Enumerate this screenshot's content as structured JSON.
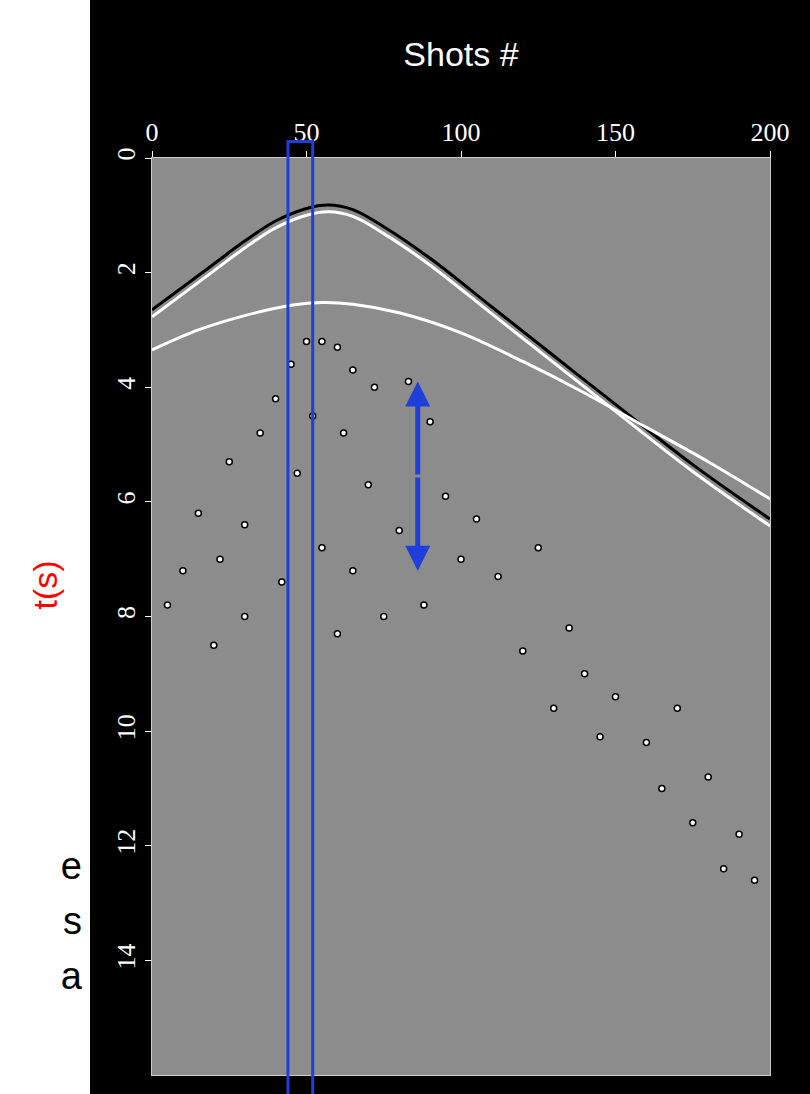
{
  "chart_data": {
    "type": "line",
    "x_label": "Shots #",
    "y_label": "t(s)",
    "xlim": [
      0,
      200
    ],
    "ylim": [
      0,
      16
    ],
    "xticks": [
      0,
      50,
      100,
      150,
      200
    ],
    "yticks": [
      0,
      2,
      4,
      6,
      8,
      10,
      12,
      14
    ],
    "grid": false,
    "series": [
      {
        "type": "line",
        "color": "#000000",
        "x": [
          0,
          10,
          20,
          30,
          40,
          50,
          57,
          65,
          75,
          90,
          110,
          130,
          150,
          175,
          200
        ],
        "values": [
          2.65,
          2.25,
          1.85,
          1.45,
          1.1,
          0.88,
          0.82,
          0.9,
          1.2,
          1.75,
          2.6,
          3.45,
          4.3,
          5.35,
          6.3
        ]
      },
      {
        "type": "line",
        "color": "#ffffff",
        "x": [
          0,
          10,
          20,
          30,
          40,
          50,
          57,
          65,
          75,
          90,
          110,
          130,
          150,
          175,
          200
        ],
        "values": [
          2.77,
          2.37,
          1.97,
          1.57,
          1.22,
          1.0,
          0.94,
          1.02,
          1.32,
          1.87,
          2.72,
          3.57,
          4.42,
          5.47,
          6.42
        ]
      },
      {
        "type": "line",
        "color": "#ffffff",
        "x": [
          0,
          15,
          30,
          45,
          55,
          65,
          80,
          100,
          120,
          140,
          160,
          180,
          200
        ],
        "values": [
          3.35,
          3.0,
          2.75,
          2.57,
          2.52,
          2.55,
          2.7,
          3.05,
          3.55,
          4.1,
          4.7,
          5.3,
          5.95
        ]
      },
      {
        "type": "scatter",
        "color": "#ffffff",
        "marker": "circle",
        "x": [
          50,
          55,
          60,
          45,
          65,
          40,
          72,
          83,
          35,
          52,
          62,
          90,
          25,
          47,
          70,
          95,
          15,
          30,
          55,
          80,
          105,
          10,
          22,
          42,
          65,
          88,
          112,
          125,
          5,
          30,
          60,
          120,
          135,
          140,
          150,
          160,
          170,
          180,
          175,
          185,
          190,
          195,
          165,
          145,
          130,
          100,
          20,
          75
        ],
        "values": [
          3.2,
          3.2,
          3.3,
          3.6,
          3.7,
          4.2,
          4.0,
          3.9,
          4.8,
          4.5,
          4.8,
          4.6,
          5.3,
          5.5,
          5.7,
          5.9,
          6.2,
          6.4,
          6.8,
          6.5,
          6.3,
          7.2,
          7.0,
          7.4,
          7.2,
          7.8,
          7.3,
          6.8,
          7.8,
          8.0,
          8.3,
          8.6,
          8.2,
          9.0,
          9.4,
          10.2,
          9.6,
          10.8,
          11.6,
          12.4,
          11.8,
          12.6,
          11.0,
          10.1,
          9.6,
          7.0,
          8.5,
          8.0
        ]
      }
    ],
    "highlight": {
      "x": [
        44,
        52
      ],
      "color": "#1f3fdc"
    },
    "arrow": {
      "x": 86,
      "y": [
        3.9,
        7.2
      ],
      "color": "#1f3fdc"
    },
    "annotations": [
      "e",
      "s",
      "a"
    ]
  }
}
